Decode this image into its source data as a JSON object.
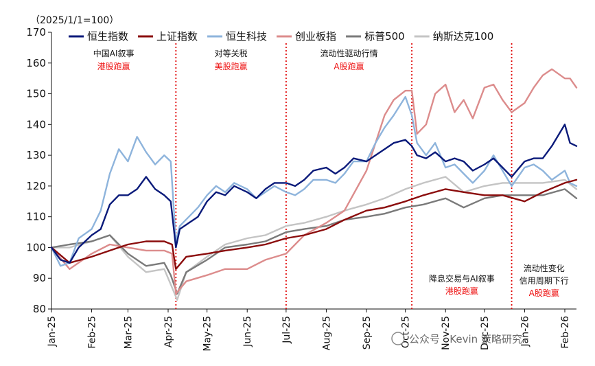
{
  "chart_data": {
    "type": "line",
    "title": "",
    "unit_label": "（2025/1/1=100）",
    "xlabel": "",
    "ylabel": "",
    "ylim": [
      80,
      170
    ],
    "yticks": [
      80,
      90,
      100,
      110,
      120,
      130,
      140,
      150,
      160,
      170
    ],
    "x_range": [
      "2025-01-01",
      "2026-02-10"
    ],
    "xticks": [
      {
        "date": "2025-01-01",
        "label": "Jan-25"
      },
      {
        "date": "2025-02-01",
        "label": "Feb-25"
      },
      {
        "date": "2025-03-01",
        "label": "Mar-25"
      },
      {
        "date": "2025-04-01",
        "label": "Apr-25"
      },
      {
        "date": "2025-05-01",
        "label": "May-25"
      },
      {
        "date": "2025-06-01",
        "label": "Jun-25"
      },
      {
        "date": "2025-07-01",
        "label": "Jul-25"
      },
      {
        "date": "2025-08-01",
        "label": "Aug-25"
      },
      {
        "date": "2025-09-01",
        "label": "Sep-25"
      },
      {
        "date": "2025-10-01",
        "label": "Oct-25"
      },
      {
        "date": "2025-11-01",
        "label": "Nov-25"
      },
      {
        "date": "2025-12-01",
        "label": "Dec-25"
      },
      {
        "date": "2026-01-01",
        "label": "Jan-26"
      },
      {
        "date": "2026-02-01",
        "label": "Feb-26"
      }
    ],
    "legend": "top",
    "grid": false,
    "series": [
      {
        "name": "恒生指数",
        "color": "#0a1a7a",
        "width": 2.4,
        "x": [
          "2025-01-01",
          "2025-01-08",
          "2025-01-15",
          "2025-01-22",
          "2025-02-01",
          "2025-02-08",
          "2025-02-15",
          "2025-02-22",
          "2025-03-01",
          "2025-03-08",
          "2025-03-15",
          "2025-03-22",
          "2025-03-29",
          "2025-04-03",
          "2025-04-07",
          "2025-04-10",
          "2025-04-17",
          "2025-04-24",
          "2025-05-01",
          "2025-05-08",
          "2025-05-15",
          "2025-05-22",
          "2025-06-01",
          "2025-06-08",
          "2025-06-15",
          "2025-06-22",
          "2025-07-01",
          "2025-07-08",
          "2025-07-15",
          "2025-07-22",
          "2025-08-01",
          "2025-08-08",
          "2025-08-15",
          "2025-08-22",
          "2025-09-01",
          "2025-09-08",
          "2025-09-15",
          "2025-09-22",
          "2025-10-01",
          "2025-10-06",
          "2025-10-10",
          "2025-10-17",
          "2025-10-24",
          "2025-11-01",
          "2025-11-08",
          "2025-11-15",
          "2025-11-22",
          "2025-12-01",
          "2025-12-08",
          "2025-12-15",
          "2025-12-22",
          "2026-01-01",
          "2026-01-08",
          "2026-01-15",
          "2026-01-22",
          "2026-02-01",
          "2026-02-05",
          "2026-02-10"
        ],
        "y": [
          100,
          96,
          95,
          100,
          104,
          106,
          114,
          117,
          117,
          119,
          123,
          119,
          117,
          115,
          100,
          106,
          108,
          110,
          115,
          118,
          117,
          120,
          118,
          116,
          119,
          121,
          121,
          120,
          122,
          125,
          126,
          124,
          126,
          129,
          128,
          130,
          132,
          134,
          135,
          133,
          130,
          129,
          131,
          128,
          129,
          128,
          125,
          127,
          129,
          126,
          123,
          128,
          129,
          129,
          133,
          140,
          134,
          133
        ]
      },
      {
        "name": "上证指数",
        "color": "#8b0c0c",
        "width": 2.4,
        "x": [
          "2025-01-01",
          "2025-01-15",
          "2025-02-01",
          "2025-02-15",
          "2025-03-01",
          "2025-03-15",
          "2025-03-29",
          "2025-04-04",
          "2025-04-07",
          "2025-04-15",
          "2025-05-01",
          "2025-05-15",
          "2025-06-01",
          "2025-06-15",
          "2025-07-01",
          "2025-07-15",
          "2025-08-01",
          "2025-08-15",
          "2025-09-01",
          "2025-09-15",
          "2025-10-01",
          "2025-10-15",
          "2025-11-01",
          "2025-11-15",
          "2025-12-01",
          "2025-12-15",
          "2026-01-01",
          "2026-01-15",
          "2026-02-01",
          "2026-02-10"
        ],
        "y": [
          100,
          95,
          97,
          99,
          101,
          102,
          102,
          101,
          93,
          97,
          98,
          99,
          100,
          101,
          103,
          104,
          106,
          109,
          112,
          113,
          115,
          117,
          119,
          118,
          117,
          117,
          115,
          118,
          121,
          122
        ]
      },
      {
        "name": "恒生科技",
        "color": "#8eb4dc",
        "width": 2.4,
        "x": [
          "2025-01-01",
          "2025-01-08",
          "2025-01-15",
          "2025-01-22",
          "2025-02-01",
          "2025-02-08",
          "2025-02-15",
          "2025-02-22",
          "2025-03-01",
          "2025-03-08",
          "2025-03-15",
          "2025-03-22",
          "2025-03-29",
          "2025-04-03",
          "2025-04-07",
          "2025-04-10",
          "2025-04-17",
          "2025-04-24",
          "2025-05-01",
          "2025-05-08",
          "2025-05-15",
          "2025-05-22",
          "2025-06-01",
          "2025-06-08",
          "2025-06-15",
          "2025-06-22",
          "2025-07-01",
          "2025-07-08",
          "2025-07-15",
          "2025-07-22",
          "2025-08-01",
          "2025-08-08",
          "2025-08-15",
          "2025-08-22",
          "2025-09-01",
          "2025-09-08",
          "2025-09-15",
          "2025-09-22",
          "2025-10-01",
          "2025-10-06",
          "2025-10-10",
          "2025-10-17",
          "2025-10-24",
          "2025-11-01",
          "2025-11-08",
          "2025-11-15",
          "2025-11-22",
          "2025-12-01",
          "2025-12-08",
          "2025-12-15",
          "2025-12-22",
          "2026-01-01",
          "2026-01-08",
          "2026-01-15",
          "2026-01-22",
          "2026-02-01",
          "2026-02-05",
          "2026-02-10"
        ],
        "y": [
          100,
          94,
          95,
          103,
          106,
          112,
          124,
          132,
          128,
          136,
          131,
          127,
          130,
          128,
          102,
          107,
          110,
          113,
          117,
          120,
          118,
          121,
          119,
          116,
          118,
          120,
          118,
          117,
          119,
          122,
          122,
          121,
          124,
          128,
          128,
          134,
          139,
          143,
          149,
          143,
          134,
          130,
          134,
          126,
          127,
          124,
          121,
          125,
          130,
          125,
          120,
          126,
          127,
          125,
          122,
          125,
          121,
          120
        ]
      },
      {
        "name": "创业板指",
        "color": "#dc8c8c",
        "width": 2.4,
        "x": [
          "2025-01-01",
          "2025-01-15",
          "2025-02-01",
          "2025-02-15",
          "2025-03-01",
          "2025-03-15",
          "2025-03-29",
          "2025-04-04",
          "2025-04-07",
          "2025-04-15",
          "2025-05-01",
          "2025-05-15",
          "2025-06-01",
          "2025-06-15",
          "2025-07-01",
          "2025-07-15",
          "2025-08-01",
          "2025-08-15",
          "2025-09-01",
          "2025-09-08",
          "2025-09-15",
          "2025-09-22",
          "2025-10-01",
          "2025-10-06",
          "2025-10-10",
          "2025-10-17",
          "2025-10-24",
          "2025-11-01",
          "2025-11-08",
          "2025-11-15",
          "2025-11-22",
          "2025-12-01",
          "2025-12-08",
          "2025-12-15",
          "2025-12-22",
          "2026-01-01",
          "2026-01-08",
          "2026-01-15",
          "2026-01-22",
          "2026-02-01",
          "2026-02-05",
          "2026-02-10"
        ],
        "y": [
          100,
          93,
          98,
          101,
          100,
          99,
          99,
          98,
          85,
          89,
          91,
          93,
          93,
          96,
          98,
          104,
          108,
          112,
          125,
          134,
          143,
          148,
          151,
          151,
          137,
          140,
          150,
          153,
          144,
          148,
          142,
          152,
          153,
          148,
          144,
          147,
          152,
          156,
          158,
          155,
          155,
          152
        ]
      },
      {
        "name": "标普500",
        "color": "#7a7a7a",
        "width": 2.4,
        "x": [
          "2025-01-01",
          "2025-01-15",
          "2025-02-01",
          "2025-02-15",
          "2025-03-01",
          "2025-03-15",
          "2025-03-29",
          "2025-04-03",
          "2025-04-08",
          "2025-04-15",
          "2025-05-01",
          "2025-05-15",
          "2025-06-01",
          "2025-06-15",
          "2025-07-01",
          "2025-07-15",
          "2025-08-01",
          "2025-08-15",
          "2025-09-01",
          "2025-09-15",
          "2025-10-01",
          "2025-10-15",
          "2025-11-01",
          "2025-11-15",
          "2025-12-01",
          "2025-12-15",
          "2026-01-01",
          "2026-01-15",
          "2026-02-01",
          "2026-02-10"
        ],
        "y": [
          100,
          101,
          102,
          104,
          98,
          94,
          95,
          91,
          85,
          92,
          96,
          100,
          101,
          102,
          105,
          106,
          107,
          109,
          110,
          111,
          113,
          114,
          116,
          113,
          116,
          117,
          117,
          117,
          119,
          116
        ]
      },
      {
        "name": "纳斯达克100",
        "color": "#c4c4c4",
        "width": 2.4,
        "x": [
          "2025-01-01",
          "2025-01-15",
          "2025-02-01",
          "2025-02-15",
          "2025-03-01",
          "2025-03-15",
          "2025-03-29",
          "2025-04-03",
          "2025-04-08",
          "2025-04-15",
          "2025-05-01",
          "2025-05-15",
          "2025-06-01",
          "2025-06-15",
          "2025-07-01",
          "2025-07-15",
          "2025-08-01",
          "2025-08-15",
          "2025-09-01",
          "2025-09-15",
          "2025-10-01",
          "2025-10-15",
          "2025-11-01",
          "2025-11-15",
          "2025-12-01",
          "2025-12-15",
          "2026-01-01",
          "2026-01-15",
          "2026-02-01",
          "2026-02-10"
        ],
        "y": [
          100,
          100,
          102,
          104,
          97,
          92,
          93,
          88,
          83,
          92,
          97,
          101,
          103,
          104,
          107,
          108,
          110,
          112,
          114,
          116,
          119,
          121,
          123,
          118,
          120,
          121,
          121,
          121,
          122,
          119
        ]
      }
    ],
    "phases": [
      {
        "start": "2025-01-01",
        "end": "2025-04-07",
        "label": "中国AI叙事",
        "winner": "港股跑赢",
        "position": "top"
      },
      {
        "start": "2025-04-07",
        "end": "2025-07-01",
        "label": "对等关税",
        "winner": "美股跑赢",
        "position": "top"
      },
      {
        "start": "2025-07-01",
        "end": "2025-10-06",
        "label": "流动性驱动行情",
        "winner": "A股跑赢",
        "position": "top"
      },
      {
        "start": "2025-10-06",
        "end": "2025-12-22",
        "label": "降息交易与AI叙事",
        "winner": "港股跑赢",
        "position": "bottom"
      },
      {
        "start": "2025-12-22",
        "end": "2026-02-10",
        "label": "流动性变化",
        "label2": "信用周期下行",
        "winner": "A股跑赢",
        "position": "bottom"
      }
    ],
    "dividers": [
      "2025-04-07",
      "2025-07-01",
      "2025-10-06",
      "2025-12-22"
    ],
    "watermark": "公众号 · Kevin 策略研究"
  },
  "colors": {
    "axis": "#111111",
    "divider": "#e00000"
  }
}
